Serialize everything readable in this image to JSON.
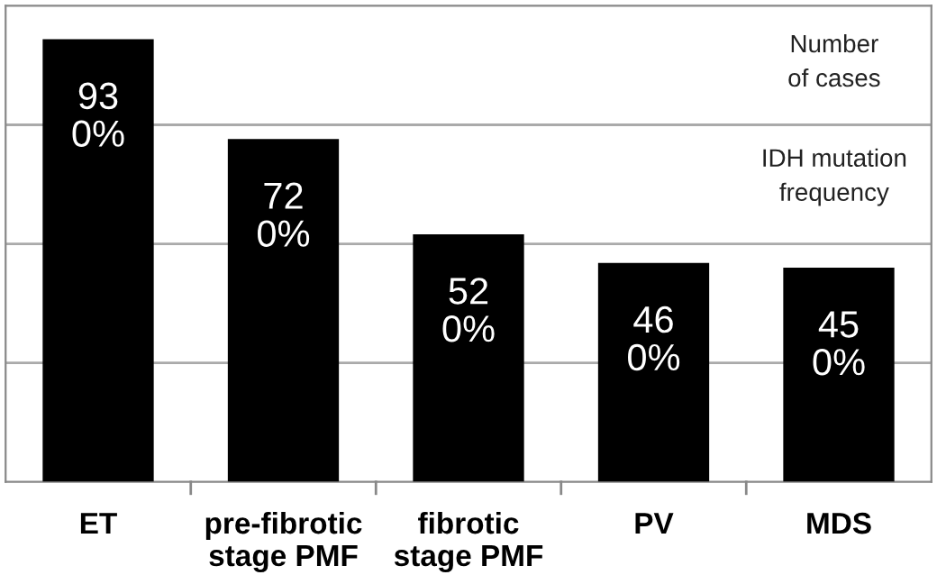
{
  "chart_data": {
    "type": "bar",
    "categories": [
      "ET",
      "pre-fibrotic\nstage PMF",
      "fibrotic\nstage PMF",
      "PV",
      "MDS"
    ],
    "values": [
      93,
      72,
      52,
      46,
      45
    ],
    "value_labels": [
      "93\n0%",
      "72\n0%",
      "52\n0%",
      "46\n0%",
      "45\n0%"
    ],
    "color": "#000000",
    "ylim": [
      0,
      100
    ],
    "yticks": [
      {
        "value": 25,
        "label": null
      },
      {
        "value": 50,
        "label": null
      },
      {
        "value": 75,
        "label": null
      }
    ],
    "tick_labels": "x",
    "grid": "y",
    "annotations": [
      "Number\nof cases",
      "IDH mutation\nfrequency"
    ]
  }
}
